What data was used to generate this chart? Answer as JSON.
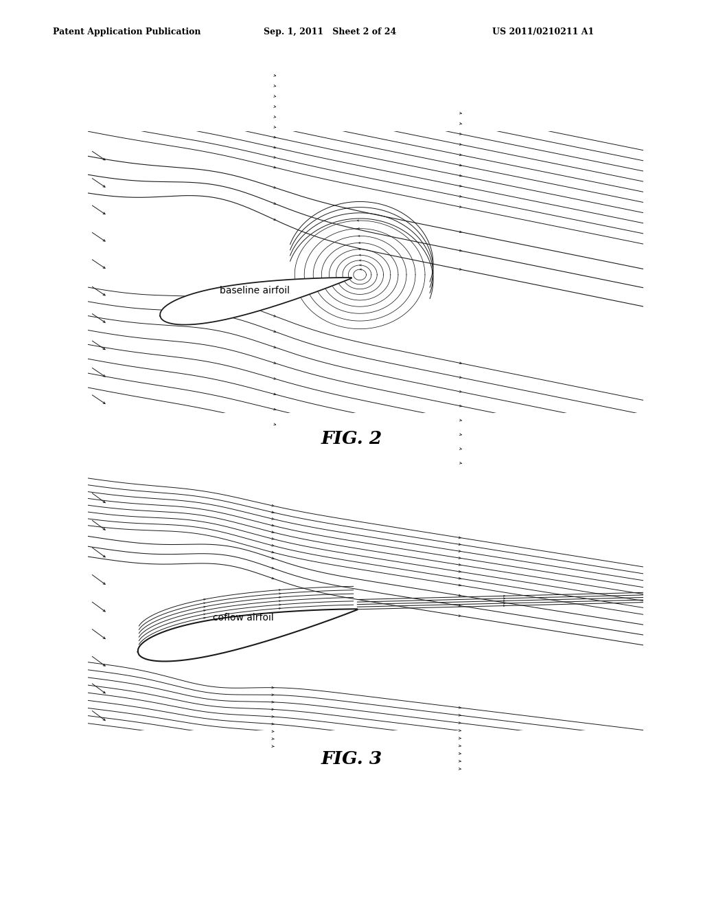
{
  "background_color": "#ffffff",
  "line_color": "#1a1a1a",
  "text_color": "#000000",
  "fig2_label": "FIG. 2",
  "fig3_label": "FIG. 3",
  "fig2_airfoil_label": "baseline airfoil",
  "fig3_airfoil_label": "coflow airfoil",
  "header_left": "Patent Application Publication",
  "header_mid": "Sep. 1, 2011   Sheet 2 of 24",
  "header_right": "US 2011/0210211 A1"
}
